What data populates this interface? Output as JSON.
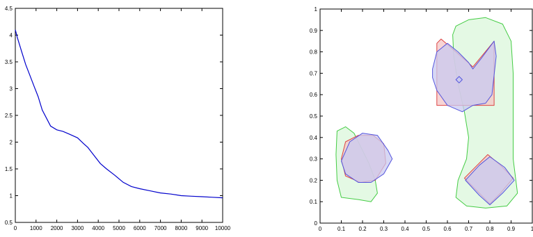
{
  "chart_data": [
    {
      "type": "line",
      "title": "",
      "xlabel": "",
      "ylabel": "",
      "xlim": [
        0,
        10000
      ],
      "ylim": [
        0.5,
        4.5
      ],
      "xticks": [
        0,
        1000,
        2000,
        3000,
        4000,
        5000,
        6000,
        7000,
        8000,
        9000,
        10000
      ],
      "yticks": [
        0.5,
        1,
        1.5,
        2,
        2.5,
        3,
        3.5,
        4,
        4.5
      ],
      "xtick_labels": [
        "0",
        "1000",
        "2000",
        "3000",
        "4000",
        "5000",
        "6000",
        "7000",
        "8000",
        "9000",
        "10000"
      ],
      "ytick_labels": [
        "0.5",
        "1",
        "1.5",
        "2",
        "2.5",
        "3",
        "3.5",
        "4",
        "4.5"
      ],
      "series": [
        {
          "color": "#0000cc",
          "x": [
            0,
            100,
            300,
            500,
            700,
            900,
            1100,
            1300,
            1500,
            1700,
            2000,
            2300,
            2600,
            3000,
            3300,
            3500,
            3800,
            4100,
            4400,
            4800,
            5200,
            5600,
            6000,
            6500,
            7000,
            7500,
            8000,
            8500,
            9000,
            9500,
            10000
          ],
          "y": [
            4.1,
            3.95,
            3.7,
            3.45,
            3.25,
            3.05,
            2.85,
            2.6,
            2.45,
            2.3,
            2.23,
            2.2,
            2.15,
            2.08,
            1.97,
            1.9,
            1.75,
            1.6,
            1.5,
            1.38,
            1.25,
            1.17,
            1.13,
            1.09,
            1.05,
            1.03,
            1.0,
            0.99,
            0.98,
            0.97,
            0.96
          ]
        }
      ],
      "grid": false
    },
    {
      "type": "scatter",
      "title": "",
      "xlabel": "",
      "ylabel": "",
      "xlim": [
        0,
        1
      ],
      "ylim": [
        0,
        1
      ],
      "xticks": [
        0,
        0.1,
        0.2,
        0.3,
        0.4,
        0.5,
        0.6,
        0.7,
        0.8,
        0.9,
        1
      ],
      "yticks": [
        0,
        0.1,
        0.2,
        0.3,
        0.4,
        0.5,
        0.6,
        0.7,
        0.8,
        0.9,
        1
      ],
      "xtick_labels": [
        "0",
        "0.1",
        "0.2",
        "0.3",
        "0.4",
        "0.5",
        "0.6",
        "0.7",
        "0.8",
        "0.9",
        "1"
      ],
      "ytick_labels": [
        "0",
        "0.1",
        "0.2",
        "0.3",
        "0.4",
        "0.5",
        "0.6",
        "0.7",
        "0.8",
        "0.9",
        "1"
      ],
      "grid": false,
      "regions": [
        {
          "stroke": "#44cc44",
          "fill": "#ddf7dd",
          "opacity": 0.8,
          "points": [
            [
              0.1,
              0.12
            ],
            [
              0.18,
              0.11
            ],
            [
              0.24,
              0.1
            ],
            [
              0.27,
              0.14
            ],
            [
              0.26,
              0.2
            ],
            [
              0.23,
              0.28
            ],
            [
              0.2,
              0.34
            ],
            [
              0.16,
              0.42
            ],
            [
              0.12,
              0.45
            ],
            [
              0.08,
              0.43
            ],
            [
              0.075,
              0.32
            ],
            [
              0.08,
              0.2
            ]
          ]
        },
        {
          "stroke": "#44cc44",
          "fill": "#ddf7dd",
          "opacity": 0.8,
          "points": [
            [
              0.64,
              0.92
            ],
            [
              0.7,
              0.95
            ],
            [
              0.78,
              0.96
            ],
            [
              0.86,
              0.93
            ],
            [
              0.9,
              0.85
            ],
            [
              0.91,
              0.7
            ],
            [
              0.91,
              0.5
            ],
            [
              0.91,
              0.3
            ],
            [
              0.93,
              0.14
            ],
            [
              0.88,
              0.08
            ],
            [
              0.78,
              0.07
            ],
            [
              0.69,
              0.08
            ],
            [
              0.64,
              0.12
            ],
            [
              0.65,
              0.2
            ],
            [
              0.69,
              0.3
            ],
            [
              0.7,
              0.4
            ],
            [
              0.68,
              0.52
            ],
            [
              0.65,
              0.65
            ],
            [
              0.63,
              0.78
            ],
            [
              0.625,
              0.88
            ]
          ]
        },
        {
          "stroke": "#dd4444",
          "fill": "#f4c6c6",
          "opacity": 0.75,
          "points": [
            [
              0.1,
              0.3
            ],
            [
              0.12,
              0.38
            ],
            [
              0.18,
              0.41
            ],
            [
              0.25,
              0.41
            ],
            [
              0.3,
              0.37
            ],
            [
              0.31,
              0.28
            ],
            [
              0.26,
              0.2
            ],
            [
              0.19,
              0.19
            ],
            [
              0.12,
              0.22
            ]
          ]
        },
        {
          "stroke": "#5555dd",
          "fill": "#c9c9f0",
          "opacity": 0.75,
          "points": [
            [
              0.1,
              0.29
            ],
            [
              0.14,
              0.38
            ],
            [
              0.2,
              0.42
            ],
            [
              0.27,
              0.41
            ],
            [
              0.32,
              0.34
            ],
            [
              0.34,
              0.3
            ],
            [
              0.3,
              0.23
            ],
            [
              0.24,
              0.19
            ],
            [
              0.18,
              0.19
            ],
            [
              0.12,
              0.23
            ]
          ]
        },
        {
          "stroke": "#dd4444",
          "fill": "#f4c6c6",
          "opacity": 0.75,
          "points": [
            [
              0.55,
              0.55
            ],
            [
              0.82,
              0.55
            ],
            [
              0.82,
              0.85
            ],
            [
              0.72,
              0.73
            ],
            [
              0.64,
              0.8
            ],
            [
              0.57,
              0.86
            ],
            [
              0.55,
              0.84
            ]
          ]
        },
        {
          "stroke": "#5555dd",
          "fill": "#c9c9f0",
          "opacity": 0.75,
          "points": [
            [
              0.53,
              0.72
            ],
            [
              0.55,
              0.8
            ],
            [
              0.6,
              0.84
            ],
            [
              0.65,
              0.8
            ],
            [
              0.7,
              0.75
            ],
            [
              0.72,
              0.72
            ],
            [
              0.76,
              0.77
            ],
            [
              0.82,
              0.85
            ],
            [
              0.83,
              0.78
            ],
            [
              0.81,
              0.6
            ],
            [
              0.78,
              0.56
            ],
            [
              0.72,
              0.55
            ],
            [
              0.67,
              0.52
            ],
            [
              0.6,
              0.55
            ],
            [
              0.55,
              0.62
            ],
            [
              0.53,
              0.68
            ]
          ]
        },
        {
          "stroke": "#5555dd",
          "fill": "#c9c9f0",
          "opacity": 0.9,
          "points": [
            [
              0.64,
              0.67
            ],
            [
              0.655,
              0.685
            ],
            [
              0.67,
              0.67
            ],
            [
              0.655,
              0.655
            ]
          ]
        },
        {
          "stroke": "#dd4444",
          "fill": "#f4c6c6",
          "opacity": 0.75,
          "points": [
            [
              0.68,
              0.21
            ],
            [
              0.74,
              0.27
            ],
            [
              0.79,
              0.32
            ],
            [
              0.85,
              0.27
            ],
            [
              0.91,
              0.21
            ],
            [
              0.85,
              0.14
            ],
            [
              0.8,
              0.09
            ],
            [
              0.74,
              0.15
            ]
          ]
        },
        {
          "stroke": "#5555dd",
          "fill": "#c9c9f0",
          "opacity": 0.75,
          "points": [
            [
              0.685,
              0.2
            ],
            [
              0.75,
              0.27
            ],
            [
              0.8,
              0.31
            ],
            [
              0.87,
              0.26
            ],
            [
              0.915,
              0.2
            ],
            [
              0.86,
              0.14
            ],
            [
              0.8,
              0.085
            ],
            [
              0.75,
              0.13
            ]
          ]
        }
      ]
    }
  ]
}
